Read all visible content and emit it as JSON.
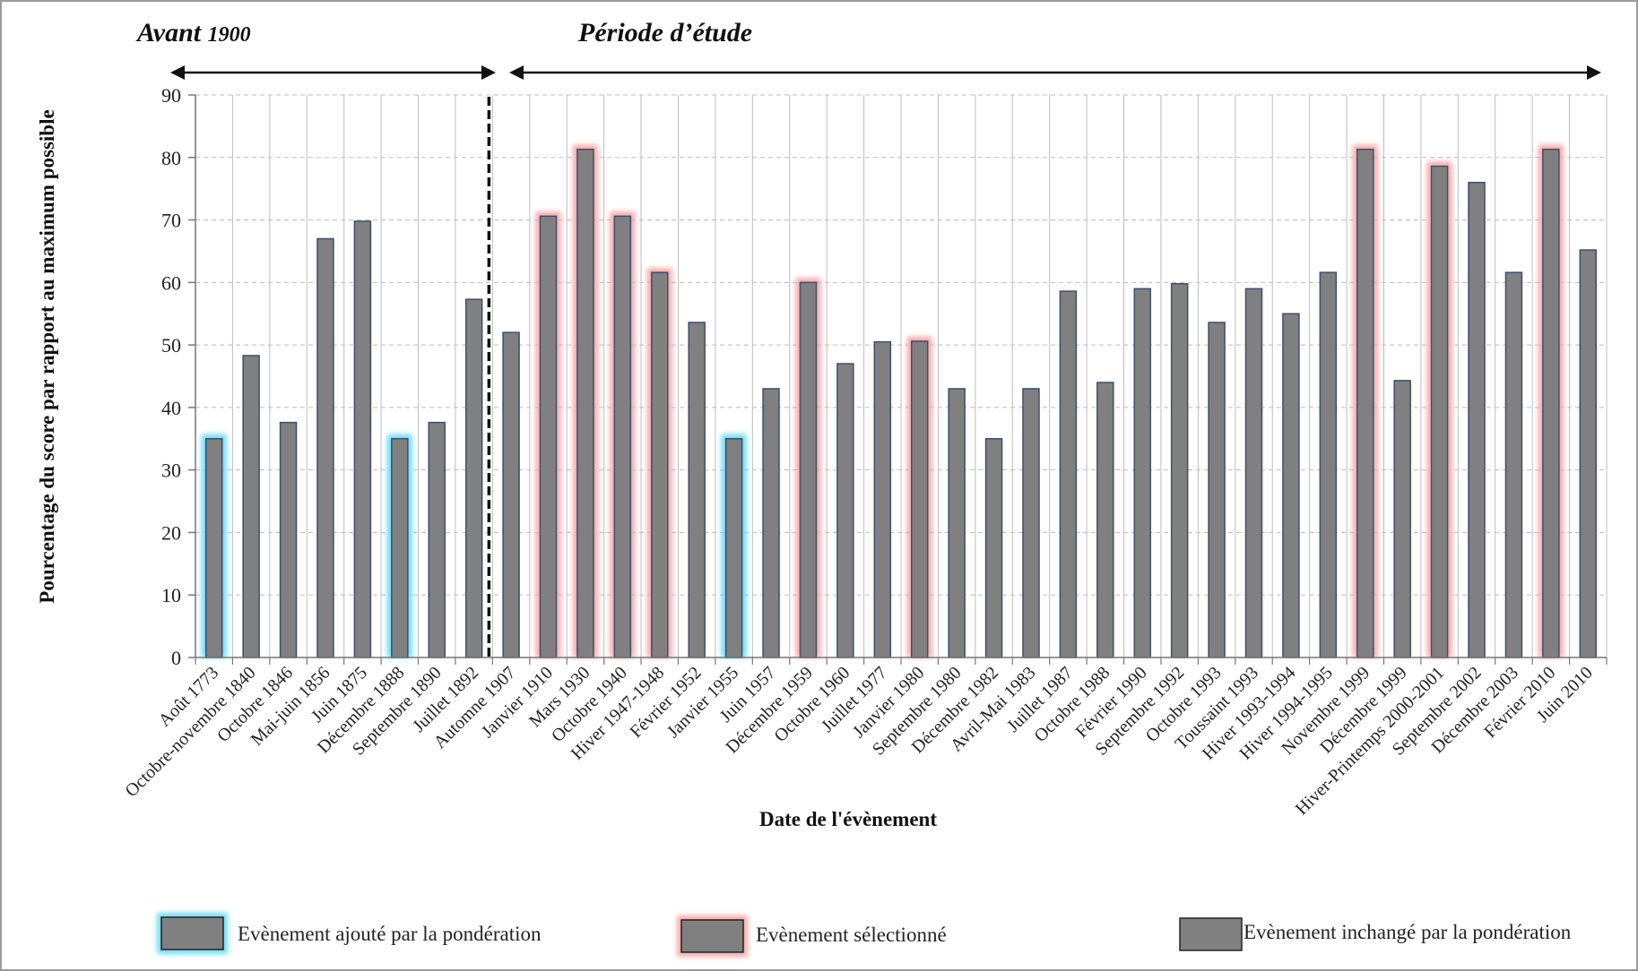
{
  "chart_data": {
    "type": "bar",
    "xlabel": "Date de l'évènement",
    "ylabel": "Pourcentage du score par rapport  au maximum  possible",
    "ylim": [
      0,
      90
    ],
    "yticks": [
      0,
      10,
      20,
      30,
      40,
      50,
      60,
      70,
      80,
      90
    ],
    "grid": true,
    "periods": [
      {
        "label_main": "Avant ",
        "label_sub": "1900",
        "from_index": 0,
        "to_index": 7
      },
      {
        "label_main": "Période d’étude",
        "label_sub": "",
        "from_index": 8,
        "to_index": 37
      }
    ],
    "divider_after_index": 7,
    "categories": [
      "Août 1773",
      "Octobre-novembre 1840",
      "Octobre 1846",
      "Mai-juin 1856",
      "Juin 1875",
      "Décembre 1888",
      "Septembre 1890",
      "Juillet 1892",
      "Automne 1907",
      "Janvier 1910",
      "Mars 1930",
      "Octobre 1940",
      "Hiver 1947-1948",
      "Février 1952",
      "Janvier 1955",
      "Juin 1957",
      "Décembre 1959",
      "Octobre 1960",
      "Juillet 1977",
      "Janvier 1980",
      "Septembre 1980",
      "Décembre 1982",
      "Avril-Mai 1983",
      "Juillet 1987",
      "Octobre 1988",
      "Février 1990",
      "Septembre 1992",
      "Octobre 1993",
      "Toussaint 1993",
      "Hiver 1993-1994",
      "Hiver 1994-1995",
      "Novembre 1999",
      "Décembre 1999",
      "Hiver-Printemps 2000-2001",
      "Septembre 2002",
      "Décembre 2003",
      "Février 2010",
      "Juin 2010"
    ],
    "values": [
      35,
      48.3,
      37.6,
      67,
      69.8,
      35,
      37.6,
      57.3,
      52,
      70.6,
      81.3,
      70.6,
      61.6,
      53.6,
      35,
      43,
      60,
      47,
      50.5,
      50.6,
      43,
      35,
      43,
      58.6,
      44,
      59,
      59.8,
      53.6,
      59,
      55,
      61.6,
      81.3,
      44.3,
      78.6,
      76,
      61.6,
      81.3,
      65.2
    ],
    "status": [
      "ajoute",
      "inchange",
      "inchange",
      "inchange",
      "inchange",
      "ajoute",
      "inchange",
      "inchange",
      "inchange",
      "selectionne",
      "selectionne",
      "selectionne",
      "selectionne",
      "inchange",
      "ajoute",
      "inchange",
      "selectionne",
      "inchange",
      "inchange",
      "selectionne",
      "inchange",
      "inchange",
      "inchange",
      "inchange",
      "inchange",
      "inchange",
      "inchange",
      "inchange",
      "inchange",
      "inchange",
      "inchange",
      "selectionne",
      "inchange",
      "selectionne",
      "inchange",
      "inchange",
      "selectionne",
      "inchange"
    ],
    "legend": [
      {
        "key": "ajoute",
        "label": "Evènement ajouté par la pondération"
      },
      {
        "key": "selectionne",
        "label": "Evènement sélectionné"
      },
      {
        "key": "inchange",
        "label": "Evènement inchangé par la pondération"
      }
    ],
    "colors": {
      "bar_fill": "#808080",
      "bar_stroke": "#3d4f6e",
      "glow_ajoute": "#55d6f2",
      "glow_selectionne": "#f59a9a",
      "grid": "#bdbdbd",
      "axis": "#777777"
    }
  }
}
